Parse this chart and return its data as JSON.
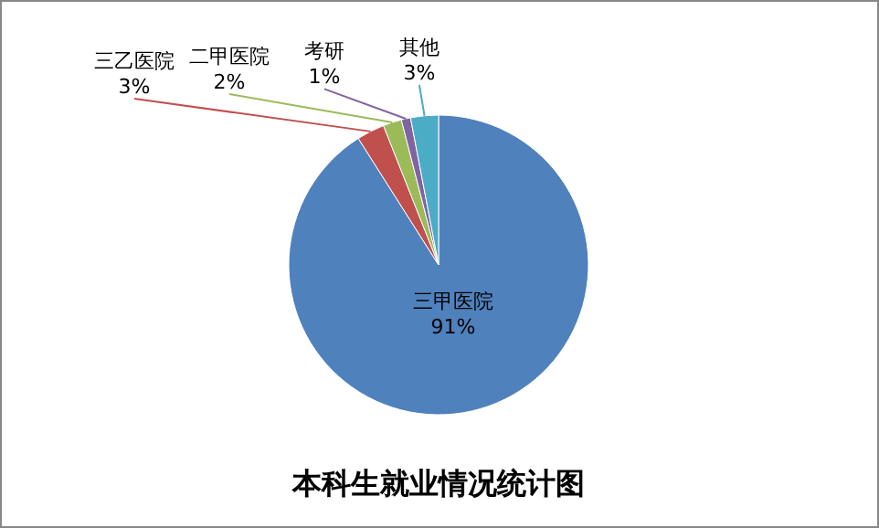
{
  "chart_data": {
    "type": "pie",
    "title": "本科生就业情况统计图",
    "categories": [
      "三甲医院",
      "三乙医院",
      "二甲医院",
      "考研",
      "其他"
    ],
    "values": [
      91,
      3,
      2,
      1,
      3
    ],
    "colors": [
      "#4f81bd",
      "#c0504d",
      "#9bbb59",
      "#8064a2",
      "#4bacc6"
    ],
    "value_labels": [
      "91%",
      "3%",
      "2%",
      "1%",
      "3%"
    ]
  }
}
